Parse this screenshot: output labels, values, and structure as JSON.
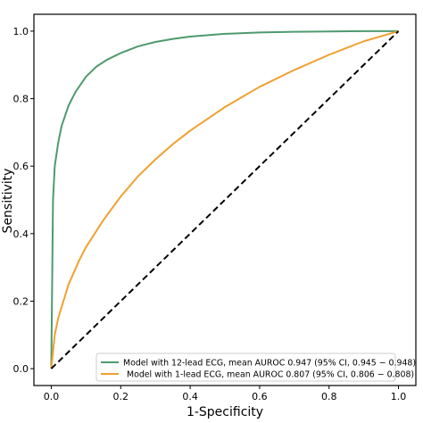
{
  "chart_data": {
    "type": "line",
    "xlabel": "1-Specificity",
    "ylabel": "Sensitivity",
    "xlim": [
      -0.05,
      1.05
    ],
    "ylim": [
      -0.05,
      1.05
    ],
    "xticks": [
      "0.0",
      "0.2",
      "0.4",
      "0.6",
      "0.8",
      "1.0"
    ],
    "yticks": [
      "0.0",
      "0.2",
      "0.4",
      "0.6",
      "0.8",
      "1.0"
    ],
    "grid": false,
    "legend_position": "bottom-right",
    "series": [
      {
        "name": "Model with 12-lead ECG, mean AUROC 0.947 (95% CI, 0.945 − 0.948)",
        "color": "#4e9a6e",
        "style": "solid",
        "x": [
          0,
          0.005,
          0.01,
          0.02,
          0.03,
          0.05,
          0.07,
          0.1,
          0.13,
          0.16,
          0.2,
          0.25,
          0.3,
          0.35,
          0.4,
          0.5,
          0.6,
          0.7,
          0.8,
          0.9,
          1.0
        ],
        "y": [
          0,
          0.5,
          0.6,
          0.67,
          0.72,
          0.78,
          0.82,
          0.865,
          0.895,
          0.915,
          0.935,
          0.955,
          0.968,
          0.977,
          0.984,
          0.992,
          0.996,
          0.998,
          0.999,
          1.0,
          1.0
        ]
      },
      {
        "name": "Model with 1-lead ECG, mean AUROC 0.807 (95% CI, 0.806 − 0.808)",
        "color": "#f0a030",
        "style": "solid",
        "x": [
          0,
          0.01,
          0.02,
          0.05,
          0.08,
          0.1,
          0.15,
          0.2,
          0.25,
          0.3,
          0.35,
          0.4,
          0.5,
          0.6,
          0.7,
          0.8,
          0.9,
          1.0
        ],
        "y": [
          0,
          0.1,
          0.15,
          0.25,
          0.32,
          0.36,
          0.44,
          0.51,
          0.57,
          0.62,
          0.665,
          0.705,
          0.775,
          0.835,
          0.885,
          0.93,
          0.97,
          1.0
        ]
      },
      {
        "name": "",
        "color": "#000000",
        "style": "dashed",
        "x": [
          0,
          1
        ],
        "y": [
          0,
          1
        ]
      }
    ]
  }
}
